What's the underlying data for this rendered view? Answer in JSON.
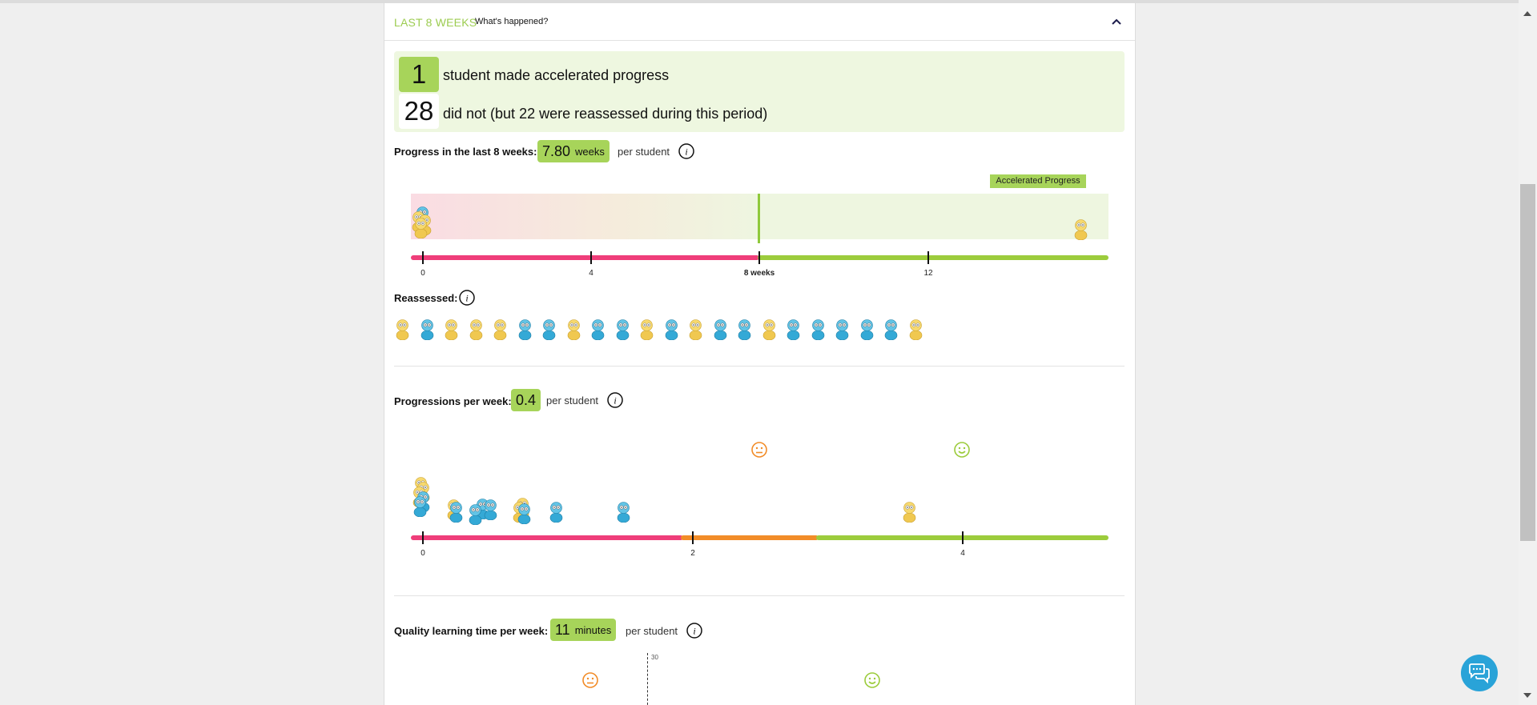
{
  "header": {
    "title": "LAST 8 WEEKS",
    "subtitle": "What's happened?"
  },
  "summary": {
    "accelerated_count": "1",
    "accelerated_text": "student made accelerated progress",
    "not_count": "28",
    "not_text": "did not (but 22 were reassessed during this period)"
  },
  "progress": {
    "label": "Progress in the last 8 weeks:",
    "value": "7.80",
    "unit": "weeks",
    "per": "per student",
    "accelerated_label": "Accelerated Progress",
    "ticks": [
      "0",
      "4",
      "8 weeks",
      "12"
    ]
  },
  "reassessed": {
    "label": "Reassessed:",
    "students": [
      "yellow",
      "blue",
      "yellow",
      "yellow",
      "yellow",
      "blue",
      "blue",
      "yellow",
      "blue",
      "blue",
      "yellow",
      "blue",
      "yellow",
      "blue",
      "blue",
      "yellow",
      "blue",
      "blue",
      "blue",
      "blue",
      "blue",
      "yellow"
    ]
  },
  "progressions": {
    "label": "Progressions per week:",
    "value": "0.4",
    "per": "per student",
    "ticks": [
      "0",
      "2",
      "4"
    ]
  },
  "learning_time": {
    "label": "Quality learning time per week:",
    "value": "11",
    "unit": "minutes",
    "per": "per student",
    "marker_label": "30"
  },
  "colors": {
    "accent_green": "#a7d45a",
    "header_green": "#9ccc50",
    "pink": "#ef3e7a",
    "orange": "#f28c28",
    "green_axis": "#9ccc3c",
    "chat_blue": "#29a3d8"
  }
}
